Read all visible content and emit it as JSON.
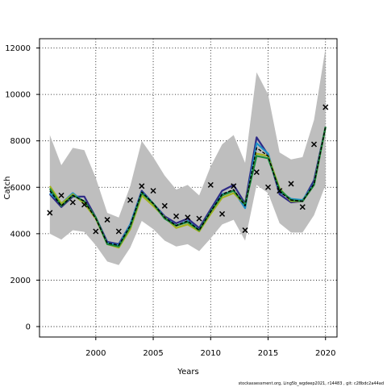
{
  "footnote": "stockassessment.org, Ling5b_wgdeep2021, r14483 ,  git: c28bdc2a44ad",
  "chart_data": {
    "type": "line",
    "xlabel": "Years",
    "ylabel": "Catch",
    "xlim": [
      1995.1,
      2021.0
    ],
    "ylim": [
      -450,
      12400
    ],
    "xticks": [
      2000,
      2005,
      2010,
      2015,
      2020
    ],
    "yticks": [
      0,
      2000,
      4000,
      6000,
      8000,
      10000,
      12000
    ],
    "grid": "dotted",
    "years": [
      1996,
      1997,
      1998,
      1999,
      2000,
      2001,
      2002,
      2003,
      2004,
      2005,
      2006,
      2007,
      2008,
      2009,
      2010,
      2011,
      2012,
      2013,
      2014,
      2015,
      2016,
      2017,
      2018,
      2019,
      2020
    ],
    "band": {
      "color": "#bebebe",
      "lower": [
        4000,
        3750,
        4150,
        4080,
        3500,
        2800,
        2650,
        3400,
        4550,
        4200,
        3700,
        3450,
        3550,
        3250,
        3800,
        4400,
        4600,
        3700,
        6100,
        5750,
        4450,
        4050,
        4050,
        4800,
        6100
      ],
      "upper": [
        8250,
        6950,
        7700,
        7600,
        6400,
        4900,
        4700,
        6050,
        8000,
        7300,
        6500,
        5900,
        6100,
        5650,
        6900,
        7850,
        8250,
        7050,
        10950,
        10000,
        7500,
        7200,
        7300,
        8900,
        12000
      ]
    },
    "observed": {
      "color": "#000000",
      "marker": "x",
      "values": [
        4900,
        5650,
        5350,
        5250,
        4100,
        4600,
        4100,
        5450,
        6050,
        5850,
        5200,
        4750,
        4700,
        4650,
        6100,
        4850,
        6050,
        4150,
        6650,
        6000,
        5850,
        6150,
        5150,
        7850,
        9450
      ]
    },
    "series": [
      {
        "color": "#2e2a86",
        "values": [
          5700,
          5150,
          5600,
          5600,
          4700,
          3650,
          3550,
          4400,
          5850,
          5300,
          4750,
          4450,
          4650,
          4250,
          5050,
          5850,
          6100,
          5300,
          8150,
          7400,
          5700,
          5350,
          5400,
          6300,
          8600
        ]
      },
      {
        "color": "#1d90c8",
        "values": [
          5750,
          5300,
          5750,
          5350,
          4650,
          3600,
          3500,
          4400,
          5800,
          5300,
          4700,
          4350,
          4550,
          4150,
          4950,
          5700,
          5850,
          5100,
          7900,
          7450,
          5800,
          5500,
          5450,
          6150,
          8600
        ]
      },
      {
        "color": "#a3b21f",
        "values": [
          6050,
          5300,
          5700,
          5300,
          4650,
          3550,
          3400,
          4200,
          5650,
          5200,
          4700,
          4250,
          4400,
          4100,
          4850,
          5550,
          5750,
          5250,
          7450,
          7350,
          5950,
          5400,
          5400,
          6100,
          8600
        ]
      },
      {
        "color": "#1a8a3c",
        "values": [
          5950,
          5200,
          5650,
          5400,
          4700,
          3550,
          3450,
          4300,
          5750,
          5300,
          4650,
          4350,
          4500,
          4150,
          4950,
          5650,
          5850,
          5250,
          7350,
          7250,
          5900,
          5450,
          5400,
          6100,
          8600
        ]
      },
      {
        "color": "#000000",
        "dash": "4,2",
        "values": [
          5850,
          5200,
          5650,
          5400,
          4650,
          3600,
          3500,
          4350,
          5800,
          5300,
          4700,
          4350,
          4550,
          4150,
          4950,
          5700,
          5900,
          5200,
          7700,
          7350,
          5800,
          5450,
          5400,
          6150,
          8600
        ]
      }
    ]
  }
}
